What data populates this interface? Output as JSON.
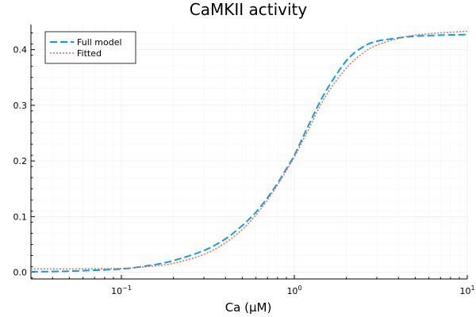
{
  "chart_data": {
    "type": "line",
    "title": "CaMKII activity",
    "xlabel": "Ca (μM)",
    "ylabel": "",
    "xscale": "log10",
    "xlim": [
      0.03,
      10
    ],
    "ylim": [
      -0.012,
      0.445
    ],
    "grid": true,
    "legend_position": "top-left",
    "x_ticks": [
      {
        "value": 0.1,
        "base": "10",
        "exp": "−1"
      },
      {
        "value": 1,
        "base": "10",
        "exp": "0"
      },
      {
        "value": 10,
        "base": "10",
        "exp": "1"
      }
    ],
    "y_ticks": [
      0.0,
      0.1,
      0.2,
      0.3,
      0.4
    ],
    "y_tick_labels": [
      "0.0",
      "0.1",
      "0.2",
      "0.3",
      "0.4"
    ],
    "series": [
      {
        "name": "Full model",
        "color": "#009AFA",
        "style": "dashed",
        "x": [
          0.03,
          0.05,
          0.1,
          0.15,
          0.2,
          0.3,
          0.4,
          0.5,
          0.6,
          0.7,
          0.8,
          0.9,
          1.0,
          1.2,
          1.5,
          2.0,
          2.5,
          3.0,
          4.0,
          5.0,
          7.0,
          10.0
        ],
        "y": [
          0.001,
          0.002,
          0.006,
          0.013,
          0.021,
          0.039,
          0.06,
          0.084,
          0.108,
          0.134,
          0.16,
          0.186,
          0.21,
          0.262,
          0.322,
          0.38,
          0.405,
          0.415,
          0.421,
          0.424,
          0.426,
          0.427
        ]
      },
      {
        "name": "Fitted",
        "color": "#E26F46",
        "style": "dotted",
        "x": [
          0.03,
          0.05,
          0.1,
          0.15,
          0.2,
          0.3,
          0.4,
          0.5,
          0.6,
          0.7,
          0.8,
          0.9,
          1.0,
          1.2,
          1.5,
          2.0,
          2.5,
          3.0,
          4.0,
          5.0,
          7.0,
          10.0
        ],
        "y": [
          0.006,
          0.006,
          0.007,
          0.011,
          0.016,
          0.032,
          0.053,
          0.077,
          0.103,
          0.13,
          0.157,
          0.183,
          0.207,
          0.255,
          0.314,
          0.367,
          0.394,
          0.408,
          0.42,
          0.426,
          0.43,
          0.433
        ]
      }
    ]
  }
}
